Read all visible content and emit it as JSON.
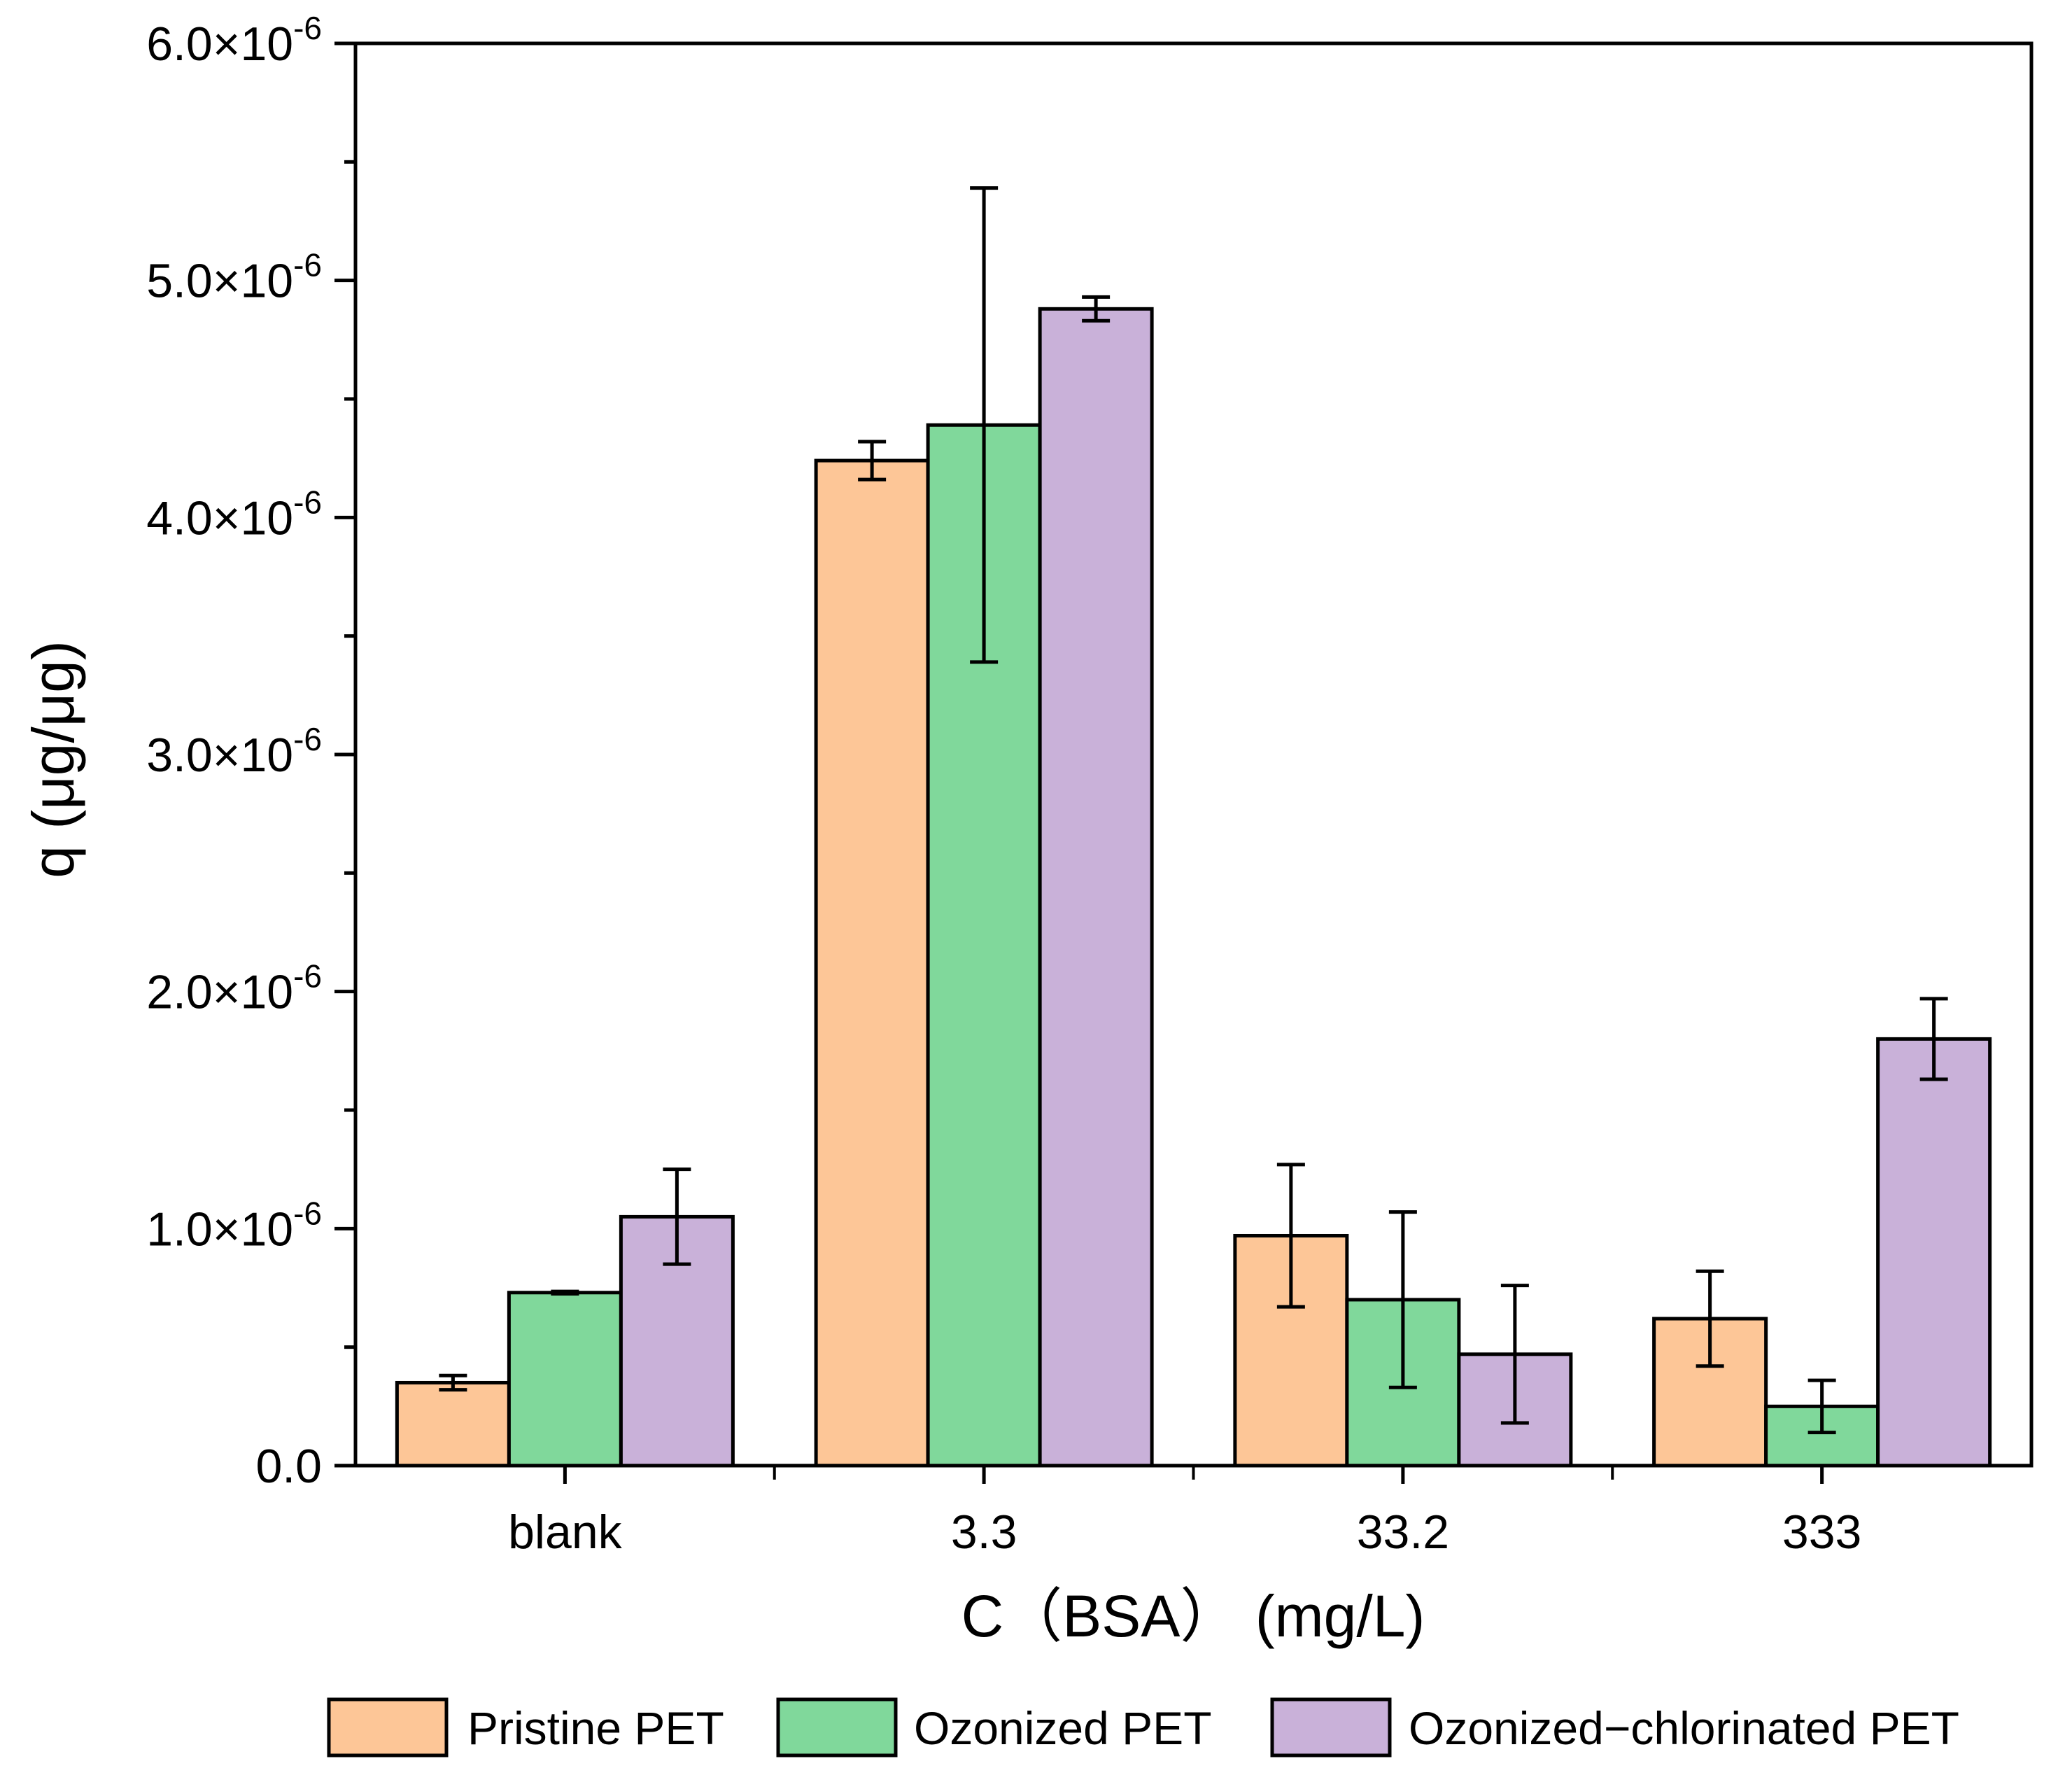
{
  "chart_data": {
    "type": "bar",
    "xlabel": "C（BSA） (mg/L)",
    "ylabel": "q (μg/μg)",
    "ylim": [
      0,
      6e-06
    ],
    "y_ticks": [
      {
        "value": 0,
        "mantissa": "0.0",
        "exponent": ""
      },
      {
        "value": 1e-06,
        "mantissa": "1.0×10",
        "exponent": "-6"
      },
      {
        "value": 2e-06,
        "mantissa": "2.0×10",
        "exponent": "-6"
      },
      {
        "value": 3e-06,
        "mantissa": "3.0×10",
        "exponent": "-6"
      },
      {
        "value": 4e-06,
        "mantissa": "4.0×10",
        "exponent": "-6"
      },
      {
        "value": 5e-06,
        "mantissa": "5.0×10",
        "exponent": "-6"
      },
      {
        "value": 6e-06,
        "mantissa": "6.0×10",
        "exponent": "-6"
      }
    ],
    "categories": [
      "blank",
      "3.3",
      "33.2",
      "333"
    ],
    "series": [
      {
        "name": "Pristine PET",
        "color": "#FDC697",
        "values": [
          3.5e-07,
          4.24e-06,
          9.7e-07,
          6.2e-07
        ],
        "errors": [
          3e-08,
          8e-08,
          3e-07,
          2e-07
        ]
      },
      {
        "name": "Ozonized PET",
        "color": "#80D89B",
        "values": [
          7.3e-07,
          4.39e-06,
          7e-07,
          2.5e-07
        ],
        "errors": [
          5e-09,
          1e-06,
          3.7e-07,
          1.1e-07
        ]
      },
      {
        "name": "Ozonized−chlorinated PET",
        "color": "#C9B1D9",
        "values": [
          1.05e-06,
          4.88e-06,
          4.7e-07,
          1.8e-06
        ],
        "errors": [
          2e-07,
          5e-08,
          2.9e-07,
          1.7e-07
        ]
      }
    ],
    "legend_position": "bottom",
    "grid": false
  }
}
